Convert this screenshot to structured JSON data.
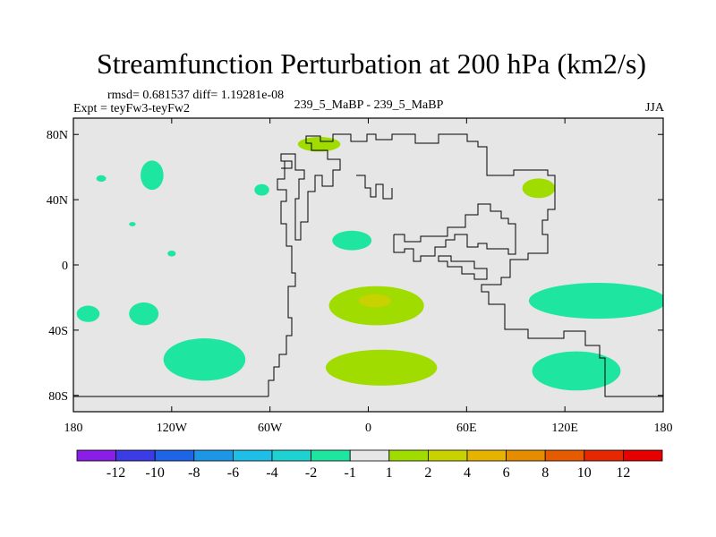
{
  "chart_data": {
    "type": "contour-map",
    "title": "Streamfunction Perturbation at 200 hPa (km2/s)",
    "stats": "rmsd= 0.681537  diff= 1.19281e-08",
    "left_label": "Expt = teyFw3-teyFw2",
    "center_label": "239_5_MaBP - 239_5_MaBP",
    "right_label": "JJA",
    "xlim": [
      -180,
      180
    ],
    "ylim": [
      -90,
      90
    ],
    "x_ticks": [
      {
        "value": -180,
        "label": "180"
      },
      {
        "value": -120,
        "label": "120W"
      },
      {
        "value": -60,
        "label": "60W"
      },
      {
        "value": 0,
        "label": "0"
      },
      {
        "value": 60,
        "label": "60E"
      },
      {
        "value": 120,
        "label": "120E"
      },
      {
        "value": 180,
        "label": "180"
      }
    ],
    "y_ticks": [
      {
        "value": 80,
        "label": "80N"
      },
      {
        "value": 40,
        "label": "40N"
      },
      {
        "value": 0,
        "label": "0"
      },
      {
        "value": -40,
        "label": "40S"
      },
      {
        "value": -80,
        "label": "80S"
      }
    ],
    "colorbar": {
      "levels": [
        "-12",
        "-10",
        "-8",
        "-6",
        "-4",
        "-2",
        "-1",
        "1",
        "2",
        "4",
        "6",
        "8",
        "10",
        "12"
      ],
      "colors": [
        "#8a1ee6",
        "#3c3ce6",
        "#1e64e6",
        "#1e96e6",
        "#1ebee6",
        "#1ed2d2",
        "#1ee6a0",
        "#e6e6e6",
        "#a0dc00",
        "#c8d200",
        "#e6b400",
        "#e68c00",
        "#e65a00",
        "#e62800",
        "#e60000"
      ]
    },
    "features": [
      {
        "name": "arctic-positive",
        "lon": -30,
        "lat": 74,
        "rx": 13,
        "ry": 4.5,
        "level": "1 to 2"
      },
      {
        "name": "pacific-neg-small-1",
        "lon": -163,
        "lat": 53,
        "rx": 3,
        "ry": 2,
        "level": "-2 to -1"
      },
      {
        "name": "pacific-neg-1",
        "lon": -132,
        "lat": 55,
        "rx": 7,
        "ry": 9,
        "level": "-2 to -1"
      },
      {
        "name": "atlantic-neg-1",
        "lon": -65,
        "lat": 46,
        "rx": 4.5,
        "ry": 3.5,
        "level": "-2 to -1"
      },
      {
        "name": "siberia-positive",
        "lon": 104,
        "lat": 47,
        "rx": 10,
        "ry": 6,
        "level": "1 to 2"
      },
      {
        "name": "pacific-neg-small-2",
        "lon": -144,
        "lat": 25,
        "rx": 2,
        "ry": 1.3,
        "level": "-2 to -1"
      },
      {
        "name": "pacific-neg-small-3",
        "lon": -120,
        "lat": 7,
        "rx": 2.5,
        "ry": 1.8,
        "level": "-2 to -1"
      },
      {
        "name": "tropical-atlantic-neg",
        "lon": -10,
        "lat": 15,
        "rx": 12,
        "ry": 6,
        "level": "-2 to -1"
      },
      {
        "name": "dateline-neg",
        "lon": -171,
        "lat": -30,
        "rx": 7,
        "ry": 5,
        "level": "-2 to -1"
      },
      {
        "name": "pacific-neg-2",
        "lon": -137,
        "lat": -30,
        "rx": 9,
        "ry": 7,
        "level": "-2 to -1"
      },
      {
        "name": "south-atlantic-pos",
        "lon": 5,
        "lat": -25,
        "rx": 29,
        "ry": 12,
        "level": "1 to 2"
      },
      {
        "name": "south-atlantic-peak",
        "lon": 4,
        "lat": -22,
        "rx": 10,
        "ry": 4,
        "level": "2 to 4"
      },
      {
        "name": "indian-ocean-neg",
        "lon": 140,
        "lat": -22,
        "rx": 42,
        "ry": 11,
        "level": "-2 to -1"
      },
      {
        "name": "southern-pacific-neg",
        "lon": -100,
        "lat": -58,
        "rx": 25,
        "ry": 13,
        "level": "-2 to -1"
      },
      {
        "name": "southern-atlantic-pos",
        "lon": 8,
        "lat": -63,
        "rx": 34,
        "ry": 11,
        "level": "1 to 2"
      },
      {
        "name": "southern-indian-neg",
        "lon": 127,
        "lat": -65,
        "rx": 27,
        "ry": 12,
        "level": "-2 to -1"
      }
    ]
  }
}
